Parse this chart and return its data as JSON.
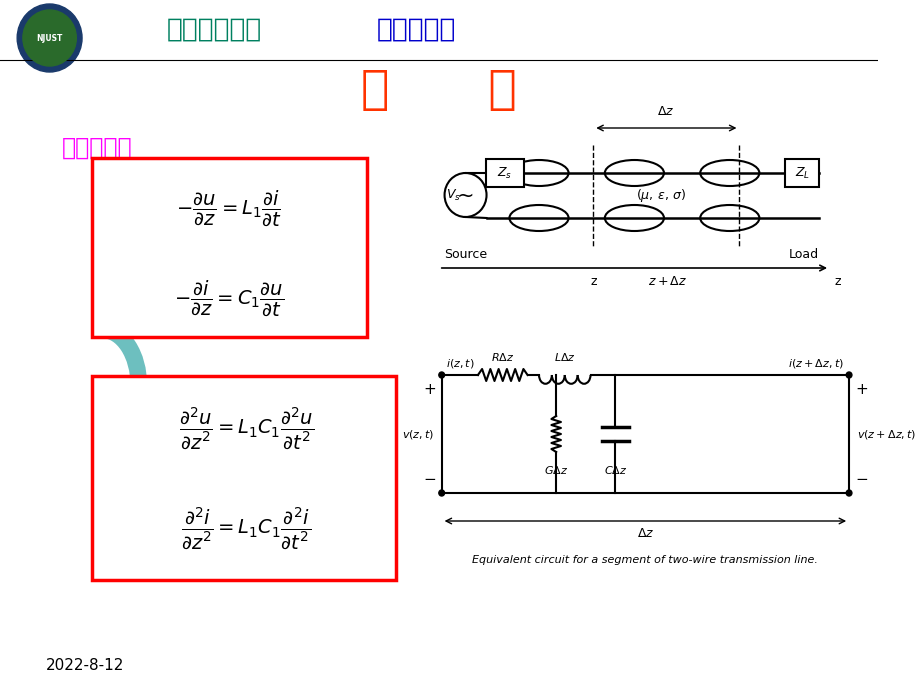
{
  "title_cn_part1": "南京理工大学",
  "title_cn_part2": "通信工程系",
  "heading": "回      顾",
  "subtitle": "无耗传输线",
  "date": "2022-8-12",
  "bg_color": "#ffffff",
  "title_color1": "#008060",
  "title_color2": "#0000cc",
  "heading_color": "#ff3300",
  "subtitle_color": "#ff00ff",
  "box_color": "#ff0000",
  "circuit_caption": "Equivalent circuit for a segment of two-wire transmission line."
}
